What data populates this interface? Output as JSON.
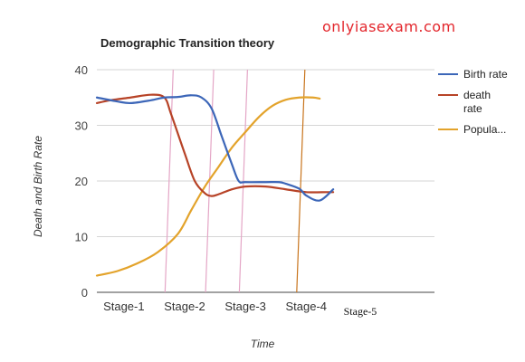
{
  "watermark": "onlyiasexam.com",
  "chart_data": {
    "type": "line",
    "title": "Demographic Transition theory",
    "xlabel": "Time",
    "ylabel": "Death and Birth Rate",
    "ylim": [
      0,
      40
    ],
    "yticks": [
      0,
      10,
      20,
      30,
      40
    ],
    "xlim": [
      0,
      50
    ],
    "grid": true,
    "legend_position": "right",
    "categories": [
      "Stage-1",
      "Stage-2",
      "Stage-3",
      "Stage-4",
      "Stage-5"
    ],
    "category_x": [
      4,
      13,
      22,
      31,
      39
    ],
    "stage_boundaries": [
      {
        "x": 10.5,
        "color": "#e4a6c6"
      },
      {
        "x": 16.5,
        "color": "#e4a6c6"
      },
      {
        "x": 21.5,
        "color": "#e4a6c6"
      },
      {
        "x": 30.0,
        "color": "#c8741c"
      }
    ],
    "series": [
      {
        "name": "Birth rate",
        "color": "#3c66b8",
        "x": [
          0,
          3,
          5,
          8,
          10,
          12,
          14,
          15.5,
          17,
          18.5,
          20,
          21,
          22,
          25,
          27,
          28,
          30,
          31,
          33,
          35
        ],
        "y": [
          35,
          34.3,
          34,
          34.5,
          35,
          35.1,
          35.4,
          35,
          33,
          28,
          23,
          20,
          19.8,
          19.8,
          19.8,
          19.5,
          18.6,
          17.4,
          16.5,
          18.5
        ]
      },
      {
        "name": "death rate",
        "color": "#b74327",
        "x": [
          0,
          2,
          5,
          8,
          10,
          11,
          13,
          14.5,
          16,
          17,
          18,
          20,
          22,
          25,
          28,
          31,
          34,
          35
        ],
        "y": [
          34,
          34.5,
          35,
          35.5,
          35,
          32,
          25,
          20,
          17.8,
          17.3,
          17.6,
          18.5,
          19,
          19,
          18.5,
          18,
          18,
          18
        ]
      },
      {
        "name": "Popula...",
        "color": "#e3a32b",
        "x": [
          0,
          3,
          6,
          9,
          12,
          14,
          16,
          18,
          20,
          22,
          24,
          26,
          28,
          30,
          32,
          33
        ],
        "y": [
          3,
          3.8,
          5.2,
          7.2,
          10.5,
          14.8,
          19,
          22.5,
          26,
          28.8,
          31.5,
          33.5,
          34.6,
          35,
          35,
          34.8
        ]
      }
    ]
  }
}
